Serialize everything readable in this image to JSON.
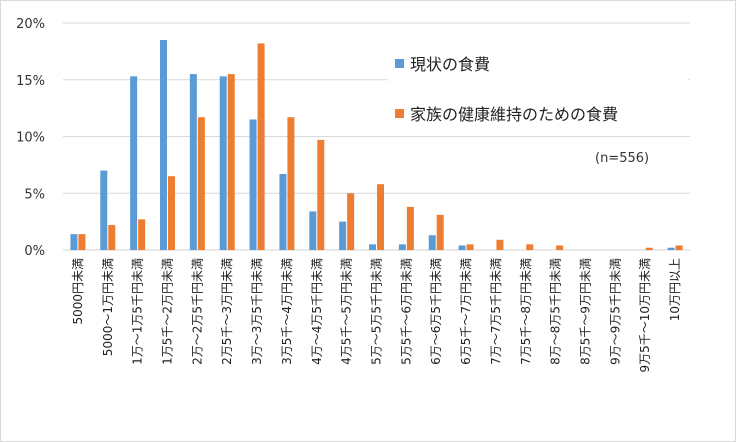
{
  "chart_data": {
    "type": "bar",
    "title": "",
    "xlabel": "",
    "ylabel": "",
    "ylim": [
      0,
      20
    ],
    "yticks": [
      "0%",
      "5%",
      "10%",
      "15%",
      "20%"
    ],
    "grid": true,
    "legend_position": "top-right",
    "annotation": "(n=556)",
    "categories": [
      "5000円未満",
      "5000～1万円未満",
      "1万～1万5千円未満",
      "1万5千～2万円未満",
      "2万～2万5千円未満",
      "2万5千～3万円未満",
      "3万～3万5千円未満",
      "3万5千～4万円未満",
      "4万～4万5千円未満",
      "4万5千～5万円未満",
      "5万～5万5千円未満",
      "5万5千～6万円未満",
      "6万～6万5千円未満",
      "6万5千～7万円未満",
      "7万～7万5千円未満",
      "7万5千～8万円未満",
      "8万～8万5千円未満",
      "8万5千～9万円未満",
      "9万～9万5千円未満",
      "9万5千～10万円未満",
      "10万円以上"
    ],
    "series": [
      {
        "name": "現状の食費",
        "color": "#5b9bd5",
        "values": [
          1.4,
          7.0,
          15.3,
          18.5,
          15.5,
          15.3,
          11.5,
          6.7,
          3.4,
          2.5,
          0.5,
          0.5,
          1.3,
          0.4,
          0,
          0,
          0,
          0,
          0,
          0,
          0.2
        ]
      },
      {
        "name": "家族の健康維持のための食費",
        "color": "#ed7d31",
        "values": [
          1.4,
          2.2,
          2.7,
          6.5,
          11.7,
          15.5,
          18.2,
          11.7,
          9.7,
          5.0,
          5.8,
          3.8,
          3.1,
          0.5,
          0.9,
          0.5,
          0.4,
          0,
          0,
          0.2,
          0.4
        ]
      }
    ]
  }
}
